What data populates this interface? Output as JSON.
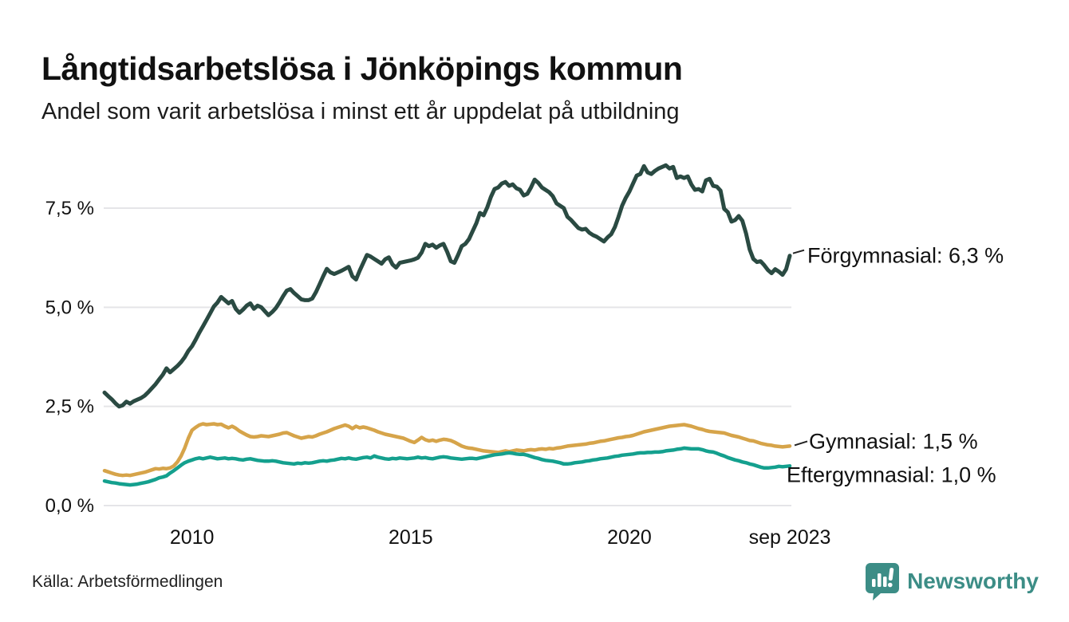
{
  "header": {
    "title": "Långtidsarbetslösa i Jönköpings kommun",
    "subtitle": "Andel som varit arbetslösa i minst ett år uppdelat på utbildning"
  },
  "footer": {
    "source": "Källa: Arbetsförmedlingen",
    "brand": "Newsworthy"
  },
  "colors": {
    "forgymnasial": "#2a4a42",
    "gymnasial": "#d6a44a",
    "eftergymnasial": "#14a08e",
    "gridline": "#e5e5e8",
    "tick_text": "#111111",
    "end_label_text": "#111111",
    "brand_teal": "#3c8d86"
  },
  "chart_data": {
    "type": "line",
    "title": "Långtidsarbetslösa i Jönköpings kommun",
    "subtitle": "Andel som varit arbetslösa i minst ett år uppdelat på utbildning",
    "x_unit": "month",
    "x_start": "2008-01",
    "x_end": "2023-09",
    "grid": "horizontal",
    "legend_position": "right-end-labels",
    "ylim": [
      0,
      9.2
    ],
    "y_ticks": [
      {
        "label": "0,0 %",
        "value": 0.0
      },
      {
        "label": "2,5 %",
        "value": 2.5
      },
      {
        "label": "5,0 %",
        "value": 5.0
      },
      {
        "label": "7,5 %",
        "value": 7.5
      }
    ],
    "x_ticks": [
      {
        "label": "2010",
        "month_index": 24
      },
      {
        "label": "2015",
        "month_index": 84
      },
      {
        "label": "2020",
        "month_index": 144
      },
      {
        "label": "sep 2023",
        "month_index": 188
      }
    ],
    "series": [
      {
        "name": "Förgymnasial",
        "end_label": "Förgymnasial: 6,3 %",
        "last_value": 6.3,
        "color": "#2a4a42",
        "values": [
          2.85,
          2.76,
          2.68,
          2.58,
          2.5,
          2.53,
          2.62,
          2.57,
          2.63,
          2.67,
          2.71,
          2.77,
          2.86,
          2.96,
          3.06,
          3.18,
          3.3,
          3.46,
          3.36,
          3.44,
          3.52,
          3.62,
          3.74,
          3.9,
          4.02,
          4.18,
          4.36,
          4.52,
          4.68,
          4.85,
          5.02,
          5.12,
          5.26,
          5.18,
          5.1,
          5.16,
          4.96,
          4.86,
          4.94,
          5.04,
          5.1,
          4.96,
          5.04,
          5.0,
          4.9,
          4.8,
          4.88,
          4.98,
          5.12,
          5.28,
          5.42,
          5.46,
          5.36,
          5.28,
          5.2,
          5.18,
          5.18,
          5.22,
          5.38,
          5.58,
          5.78,
          5.97,
          5.88,
          5.84,
          5.88,
          5.92,
          5.97,
          6.02,
          5.78,
          5.7,
          5.92,
          6.12,
          6.32,
          6.28,
          6.22,
          6.16,
          6.1,
          6.21,
          6.26,
          6.08,
          6.0,
          6.12,
          6.14,
          6.16,
          6.18,
          6.21,
          6.25,
          6.38,
          6.6,
          6.54,
          6.58,
          6.5,
          6.56,
          6.6,
          6.4,
          6.16,
          6.12,
          6.32,
          6.54,
          6.6,
          6.72,
          6.92,
          7.12,
          7.38,
          7.32,
          7.52,
          7.78,
          7.98,
          8.02,
          8.12,
          8.16,
          8.06,
          8.1,
          8.0,
          7.96,
          7.82,
          7.86,
          8.02,
          8.22,
          8.14,
          8.02,
          7.96,
          7.9,
          7.8,
          7.62,
          7.56,
          7.5,
          7.28,
          7.2,
          7.1,
          7.0,
          6.96,
          6.98,
          6.88,
          6.82,
          6.78,
          6.72,
          6.66,
          6.76,
          6.84,
          7.02,
          7.28,
          7.56,
          7.76,
          7.92,
          8.12,
          8.32,
          8.36,
          8.56,
          8.4,
          8.36,
          8.44,
          8.5,
          8.54,
          8.58,
          8.5,
          8.54,
          8.26,
          8.3,
          8.26,
          8.3,
          8.1,
          7.96,
          7.98,
          7.92,
          8.2,
          8.24,
          8.06,
          8.04,
          7.94,
          7.48,
          7.4,
          7.16,
          7.2,
          7.3,
          7.18,
          6.86,
          6.46,
          6.22,
          6.14,
          6.16,
          6.06,
          5.94,
          5.86,
          5.96,
          5.9,
          5.82,
          5.96,
          6.3
        ]
      },
      {
        "name": "Gymnasial",
        "end_label": "Gymnasial: 1,5 %",
        "last_value": 1.5,
        "color": "#d6a44a",
        "values": [
          0.88,
          0.85,
          0.82,
          0.79,
          0.77,
          0.76,
          0.77,
          0.76,
          0.78,
          0.8,
          0.82,
          0.84,
          0.87,
          0.9,
          0.93,
          0.92,
          0.94,
          0.93,
          0.95,
          1.0,
          1.1,
          1.25,
          1.45,
          1.7,
          1.9,
          1.97,
          2.03,
          2.06,
          2.04,
          2.05,
          2.06,
          2.04,
          2.05,
          2.0,
          1.96,
          2.0,
          1.95,
          1.88,
          1.83,
          1.78,
          1.74,
          1.73,
          1.74,
          1.76,
          1.75,
          1.74,
          1.76,
          1.78,
          1.8,
          1.83,
          1.84,
          1.8,
          1.76,
          1.73,
          1.7,
          1.72,
          1.74,
          1.73,
          1.76,
          1.8,
          1.83,
          1.86,
          1.9,
          1.94,
          1.97,
          2.0,
          2.03,
          2.0,
          1.94,
          2.0,
          1.96,
          1.98,
          1.96,
          1.93,
          1.9,
          1.86,
          1.83,
          1.8,
          1.78,
          1.76,
          1.74,
          1.72,
          1.7,
          1.66,
          1.62,
          1.59,
          1.65,
          1.72,
          1.66,
          1.63,
          1.65,
          1.62,
          1.65,
          1.67,
          1.66,
          1.64,
          1.6,
          1.55,
          1.5,
          1.47,
          1.45,
          1.44,
          1.42,
          1.4,
          1.38,
          1.37,
          1.36,
          1.35,
          1.34,
          1.36,
          1.38,
          1.36,
          1.38,
          1.4,
          1.39,
          1.38,
          1.4,
          1.41,
          1.4,
          1.42,
          1.43,
          1.42,
          1.44,
          1.43,
          1.45,
          1.46,
          1.48,
          1.5,
          1.51,
          1.52,
          1.53,
          1.54,
          1.55,
          1.57,
          1.58,
          1.6,
          1.62,
          1.63,
          1.65,
          1.67,
          1.69,
          1.71,
          1.72,
          1.74,
          1.75,
          1.77,
          1.8,
          1.83,
          1.86,
          1.88,
          1.9,
          1.92,
          1.94,
          1.96,
          1.98,
          2.0,
          2.01,
          2.02,
          2.03,
          2.04,
          2.02,
          2.0,
          1.97,
          1.94,
          1.92,
          1.89,
          1.87,
          1.86,
          1.85,
          1.84,
          1.83,
          1.8,
          1.77,
          1.75,
          1.73,
          1.7,
          1.67,
          1.64,
          1.63,
          1.6,
          1.57,
          1.55,
          1.53,
          1.52,
          1.5,
          1.49,
          1.48,
          1.49,
          1.5
        ]
      },
      {
        "name": "Eftergymnasial",
        "end_label": "Eftergymnasial: 1,0 %",
        "last_value": 1.0,
        "color": "#14a08e",
        "values": [
          0.62,
          0.6,
          0.58,
          0.57,
          0.55,
          0.54,
          0.53,
          0.52,
          0.53,
          0.54,
          0.56,
          0.58,
          0.6,
          0.63,
          0.66,
          0.7,
          0.72,
          0.75,
          0.82,
          0.88,
          0.95,
          1.02,
          1.08,
          1.12,
          1.15,
          1.18,
          1.2,
          1.18,
          1.2,
          1.22,
          1.2,
          1.18,
          1.19,
          1.2,
          1.18,
          1.19,
          1.18,
          1.16,
          1.15,
          1.17,
          1.18,
          1.16,
          1.14,
          1.13,
          1.12,
          1.12,
          1.13,
          1.12,
          1.1,
          1.08,
          1.07,
          1.06,
          1.05,
          1.07,
          1.06,
          1.08,
          1.07,
          1.08,
          1.1,
          1.12,
          1.13,
          1.12,
          1.14,
          1.15,
          1.17,
          1.19,
          1.18,
          1.2,
          1.18,
          1.17,
          1.19,
          1.21,
          1.22,
          1.2,
          1.25,
          1.22,
          1.2,
          1.18,
          1.17,
          1.19,
          1.18,
          1.2,
          1.19,
          1.18,
          1.19,
          1.2,
          1.22,
          1.2,
          1.21,
          1.19,
          1.18,
          1.2,
          1.22,
          1.23,
          1.22,
          1.2,
          1.19,
          1.18,
          1.17,
          1.18,
          1.19,
          1.19,
          1.18,
          1.2,
          1.22,
          1.24,
          1.26,
          1.28,
          1.29,
          1.3,
          1.32,
          1.33,
          1.32,
          1.3,
          1.29,
          1.29,
          1.27,
          1.24,
          1.21,
          1.19,
          1.16,
          1.14,
          1.13,
          1.12,
          1.1,
          1.08,
          1.05,
          1.05,
          1.06,
          1.08,
          1.09,
          1.1,
          1.12,
          1.13,
          1.15,
          1.16,
          1.18,
          1.19,
          1.2,
          1.22,
          1.24,
          1.25,
          1.27,
          1.28,
          1.29,
          1.3,
          1.32,
          1.33,
          1.33,
          1.34,
          1.34,
          1.35,
          1.35,
          1.36,
          1.38,
          1.39,
          1.4,
          1.42,
          1.43,
          1.45,
          1.44,
          1.43,
          1.43,
          1.43,
          1.41,
          1.38,
          1.36,
          1.35,
          1.32,
          1.28,
          1.25,
          1.21,
          1.18,
          1.15,
          1.13,
          1.1,
          1.08,
          1.05,
          1.03,
          1.0,
          0.97,
          0.95,
          0.95,
          0.96,
          0.97,
          0.99,
          0.98,
          0.99,
          1.0
        ]
      }
    ]
  }
}
